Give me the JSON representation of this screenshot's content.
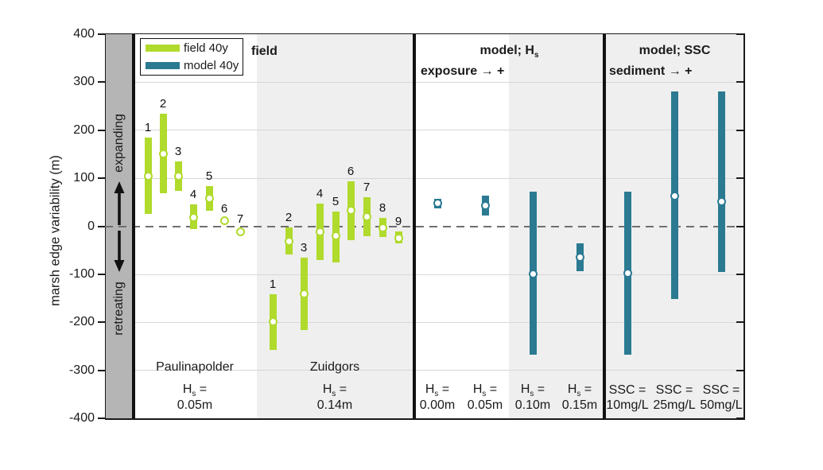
{
  "y_axis": {
    "label": "marsh edge variability (m)",
    "ticks": [
      "400",
      "300",
      "200",
      "100",
      "0",
      "-100",
      "-200",
      "-300",
      "-400"
    ]
  },
  "band": {
    "expanding": "expanding",
    "retreating": "retreating"
  },
  "legend": {
    "items": [
      {
        "label": "field 40y",
        "series": "field"
      },
      {
        "label": "model 40y",
        "series": "model"
      }
    ]
  },
  "colors": {
    "field": "#b0da2c",
    "model": "#2b7a92",
    "band": "#b5b5b5",
    "shade": "#efefef",
    "grid": "#d7d7d7",
    "zero": "#6f6f6f"
  },
  "chart_data": {
    "type": "interval-dot",
    "ylabel": "marsh edge variability (m)",
    "ylim": [
      -400,
      400
    ],
    "yticks": [
      400,
      300,
      200,
      100,
      0,
      -100,
      -200,
      -300,
      -400
    ],
    "zero_line_dashed": true,
    "legend": [
      "field 40y",
      "model 40y"
    ],
    "panels": [
      {
        "id": "field",
        "title": "field",
        "subtitle": "",
        "series": "field",
        "groups": [
          {
            "name": "Paulinapolder",
            "condition_line1": "H_s =",
            "condition_line2": "0.05m",
            "points": [
              {
                "label": "1",
                "low": 25,
                "high": 185,
                "median": 105
              },
              {
                "label": "2",
                "low": 69,
                "high": 234,
                "median": 151
              },
              {
                "label": "3",
                "low": 74,
                "high": 135,
                "median": 105
              },
              {
                "label": "4",
                "low": -6,
                "high": 46,
                "median": 19
              },
              {
                "label": "5",
                "low": 33,
                "high": 83,
                "median": 58
              },
              {
                "label": "6",
                "low": null,
                "high": null,
                "median": 11
              },
              {
                "label": "7",
                "low": null,
                "high": null,
                "median": -11
              }
            ]
          },
          {
            "name": "Zuidgors",
            "condition_line1": "H_s =",
            "condition_line2": "0.14m",
            "points": [
              {
                "label": "1",
                "low": -258,
                "high": -141,
                "median": -199
              },
              {
                "label": "2",
                "low": -58,
                "high": -2,
                "median": -32
              },
              {
                "label": "3",
                "low": -216,
                "high": -66,
                "median": -141
              },
              {
                "label": "4",
                "low": -71,
                "high": 47,
                "median": -11
              },
              {
                "label": "5",
                "low": -75,
                "high": 30,
                "median": -20
              },
              {
                "label": "6",
                "low": -28,
                "high": 94,
                "median": 33
              },
              {
                "label": "7",
                "low": -20,
                "high": 61,
                "median": 20
              },
              {
                "label": "8",
                "low": -22,
                "high": 18,
                "median": -3
              },
              {
                "label": "9",
                "low": -36,
                "high": -11,
                "median": -25
              }
            ]
          }
        ]
      },
      {
        "id": "model_hs",
        "title": "model; H_s",
        "subtitle": "exposure → +",
        "series": "model",
        "groups": [
          {
            "condition_line1": "H_s =",
            "condition_line2": "0.00m",
            "points": [
              {
                "low": 37,
                "high": 58,
                "median": 48
              }
            ]
          },
          {
            "condition_line1": "H_s =",
            "condition_line2": "0.05m",
            "points": [
              {
                "low": 22,
                "high": 64,
                "median": 43
              }
            ]
          },
          {
            "condition_line1": "H_s =",
            "condition_line2": "0.10m",
            "points": [
              {
                "low": -268,
                "high": 72,
                "median": -99
              }
            ]
          },
          {
            "condition_line1": "H_s =",
            "condition_line2": "0.15m",
            "points": [
              {
                "low": -94,
                "high": -36,
                "median": -64
              }
            ]
          }
        ]
      },
      {
        "id": "model_ssc",
        "title": "model; SSC",
        "subtitle": "sediment → +",
        "series": "model",
        "groups": [
          {
            "condition_line1": "SSC =",
            "condition_line2": "10mg/L",
            "points": [
              {
                "low": -268,
                "high": 72,
                "median": -98
              }
            ]
          },
          {
            "condition_line1": "SSC =",
            "condition_line2": "25mg/L",
            "points": [
              {
                "low": -152,
                "high": 281,
                "median": 63
              }
            ]
          },
          {
            "condition_line1": "SSC =",
            "condition_line2": "50mg/L",
            "points": [
              {
                "low": -95,
                "high": 281,
                "median": 52
              }
            ]
          }
        ]
      }
    ]
  }
}
